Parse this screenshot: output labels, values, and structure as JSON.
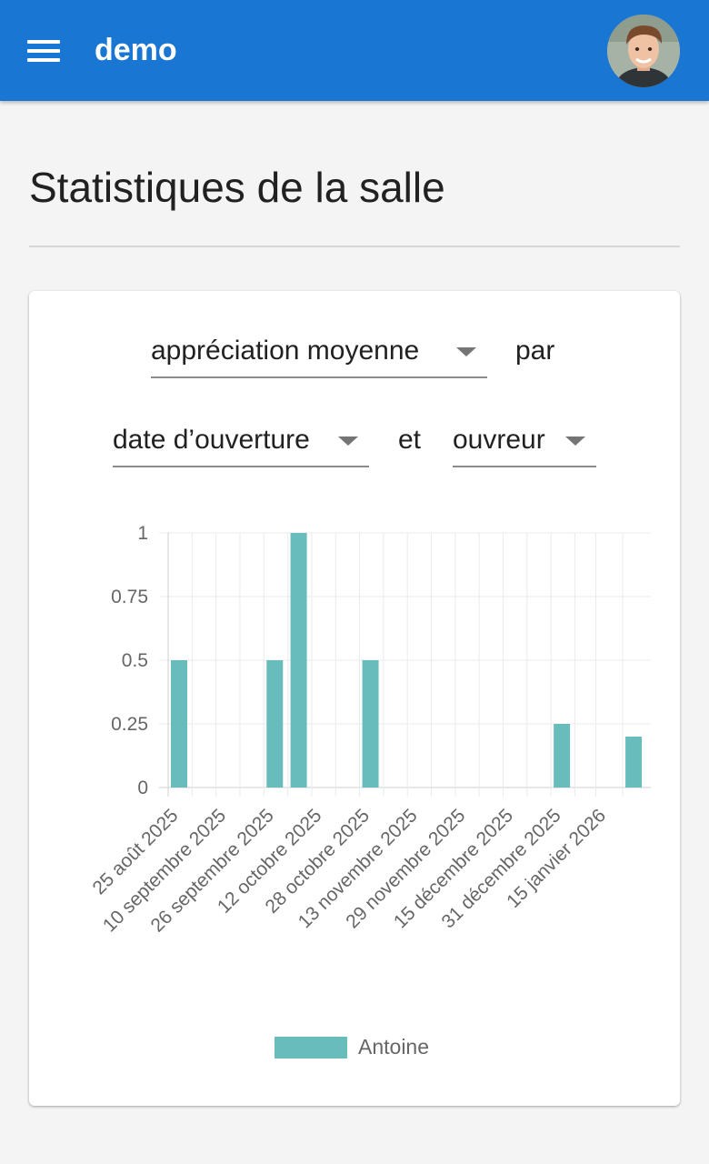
{
  "appbar": {
    "title": "demo",
    "menu_icon": "menu-icon",
    "avatar": "user-avatar",
    "color": "#1976d2"
  },
  "page": {
    "title": "Statistiques de la salle"
  },
  "filters": {
    "metric": "appréciation moyenne",
    "joiner_by": "par",
    "group_by": "date d’ouverture",
    "joiner_and": "et",
    "split_by": "ouvreur"
  },
  "chart_data": {
    "type": "bar",
    "x": [
      "2025-08-25",
      "2025-09-26",
      "2025-10-04",
      "2025-10-28",
      "2025-12-31",
      "2026-01-24"
    ],
    "x_tick_labels": [
      "25 août 2025",
      "10 septembre 2025",
      "26 septembre 2025",
      "12 octobre 2025",
      "28 octobre 2025",
      "13 novembre 2025",
      "29 novembre 2025",
      "15 décembre 2025",
      "31 décembre 2025",
      "15 janvier 2026"
    ],
    "y_tick_labels": [
      "0",
      "0.25",
      "0.5",
      "0.75",
      "1"
    ],
    "ylim": [
      0,
      1
    ],
    "series": [
      {
        "name": "Antoine",
        "values": [
          0.5,
          0.5,
          1,
          0.5,
          0.25,
          0.2
        ],
        "color": "#68bcbc"
      }
    ],
    "grid": true,
    "legend": "bottom"
  }
}
